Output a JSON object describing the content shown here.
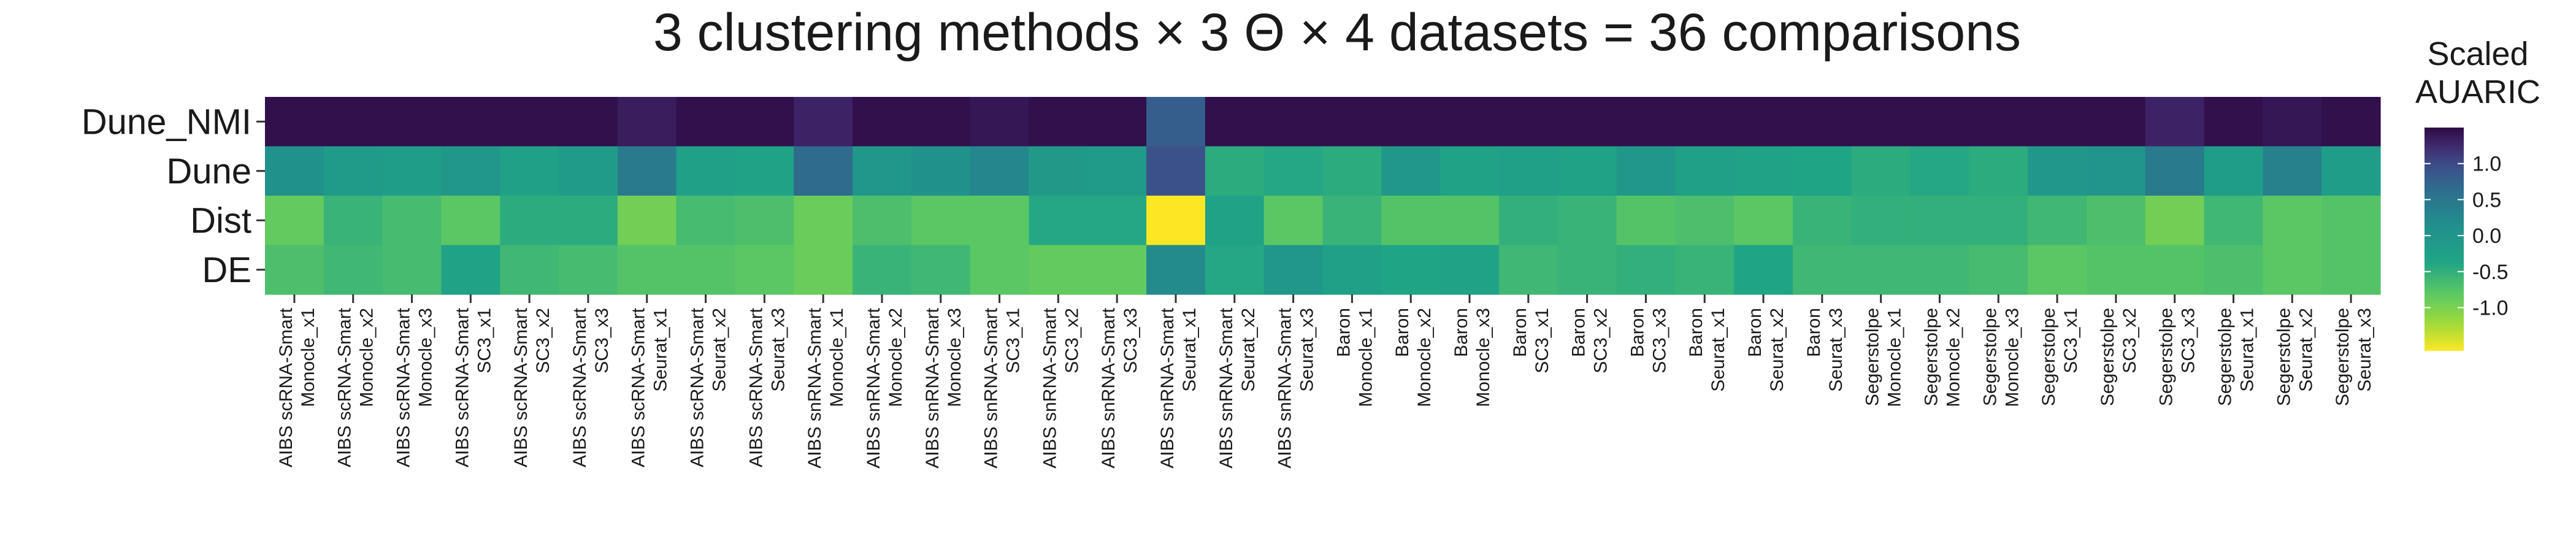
{
  "chart_data": {
    "type": "heatmap",
    "title": "3 clustering methods × 3 Θ  × 4 datasets = 36 comparisons",
    "xlabel": "",
    "ylabel": "",
    "rows": [
      "Dune_NMI",
      "Dune",
      "Dist",
      "DE"
    ],
    "columns": [
      "AIBS scRNA-Smart\nMonocle_x1",
      "AIBS scRNA-Smart\nMonocle_x2",
      "AIBS scRNA-Smart\nMonocle_x3",
      "AIBS scRNA-Smart\nSC3_x1",
      "AIBS scRNA-Smart\nSC3_x2",
      "AIBS scRNA-Smart\nSC3_x3",
      "AIBS scRNA-Smart\nSeurat_x1",
      "AIBS scRNA-Smart\nSeurat_x2",
      "AIBS scRNA-Smart\nSeurat_x3",
      "AIBS snRNA-Smart\nMonocle_x1",
      "AIBS snRNA-Smart\nMonocle_x2",
      "AIBS snRNA-Smart\nMonocle_x3",
      "AIBS snRNA-Smart\nSC3_x1",
      "AIBS snRNA-Smart\nSC3_x2",
      "AIBS snRNA-Smart\nSC3_x3",
      "AIBS snRNA-Smart\nSeurat_x1",
      "AIBS snRNA-Smart\nSeurat_x2",
      "AIBS snRNA-Smart\nSeurat_x3",
      "Baron\nMonocle_x1",
      "Baron\nMonocle_x2",
      "Baron\nMonocle_x3",
      "Baron\nSC3_x1",
      "Baron\nSC3_x2",
      "Baron\nSC3_x3",
      "Baron\nSeurat_x1",
      "Baron\nSeurat_x2",
      "Baron\nSeurat_x3",
      "Segerstolpe\nMonocle_x1",
      "Segerstolpe\nMonocle_x2",
      "Segerstolpe\nMonocle_x3",
      "Segerstolpe\nSC3_x1",
      "Segerstolpe\nSC3_x2",
      "Segerstolpe\nSC3_x3",
      "Segerstolpe\nSeurat_x1",
      "Segerstolpe\nSeurat_x2",
      "Segerstolpe\nSeurat_x3"
    ],
    "values": [
      [
        1.45,
        1.45,
        1.45,
        1.45,
        1.45,
        1.45,
        1.35,
        1.45,
        1.45,
        1.3,
        1.45,
        1.45,
        1.4,
        1.45,
        1.45,
        0.8,
        1.45,
        1.45,
        1.45,
        1.45,
        1.45,
        1.45,
        1.45,
        1.45,
        1.45,
        1.45,
        1.45,
        1.45,
        1.45,
        1.45,
        1.45,
        1.45,
        1.3,
        1.45,
        1.4,
        1.45
      ],
      [
        0.1,
        -0.15,
        -0.2,
        -0.05,
        -0.25,
        -0.15,
        0.45,
        -0.25,
        -0.3,
        0.65,
        -0.05,
        0.1,
        0.25,
        -0.1,
        -0.15,
        0.95,
        -0.45,
        -0.4,
        -0.45,
        -0.05,
        -0.3,
        -0.25,
        -0.3,
        -0.05,
        -0.25,
        -0.3,
        -0.35,
        -0.45,
        -0.4,
        -0.45,
        -0.05,
        0.0,
        0.45,
        -0.2,
        0.35,
        -0.2
      ],
      [
        -0.85,
        -0.55,
        -0.65,
        -0.8,
        -0.45,
        -0.45,
        -0.95,
        -0.65,
        -0.7,
        -0.9,
        -0.7,
        -0.8,
        -0.8,
        -0.4,
        -0.4,
        -1.6,
        -0.3,
        -0.8,
        -0.55,
        -0.75,
        -0.75,
        -0.5,
        -0.55,
        -0.75,
        -0.7,
        -0.8,
        -0.55,
        -0.5,
        -0.5,
        -0.5,
        -0.6,
        -0.7,
        -0.95,
        -0.6,
        -0.8,
        -0.75
      ],
      [
        -0.7,
        -0.6,
        -0.65,
        -0.3,
        -0.6,
        -0.65,
        -0.75,
        -0.75,
        -0.8,
        -0.9,
        -0.55,
        -0.6,
        -0.8,
        -0.85,
        -0.85,
        0.2,
        -0.4,
        -0.05,
        -0.25,
        -0.35,
        -0.3,
        -0.6,
        -0.55,
        -0.5,
        -0.55,
        -0.35,
        -0.6,
        -0.6,
        -0.6,
        -0.65,
        -0.8,
        -0.75,
        -0.75,
        -0.7,
        -0.8,
        -0.75
      ]
    ],
    "colorscale": "viridis (reversed: high = dark purple, low = yellow)",
    "zlim": [
      -1.6,
      1.5
    ],
    "colorbar": {
      "title": [
        "Scaled",
        "AUARIC"
      ],
      "ticks": [
        1.0,
        0.5,
        0.0,
        -0.5,
        -1.0
      ],
      "tick_labels": [
        "1.0",
        "0.5",
        "0.0",
        "-0.5",
        "-1.0"
      ]
    },
    "grid": false,
    "legend_position": "right"
  }
}
